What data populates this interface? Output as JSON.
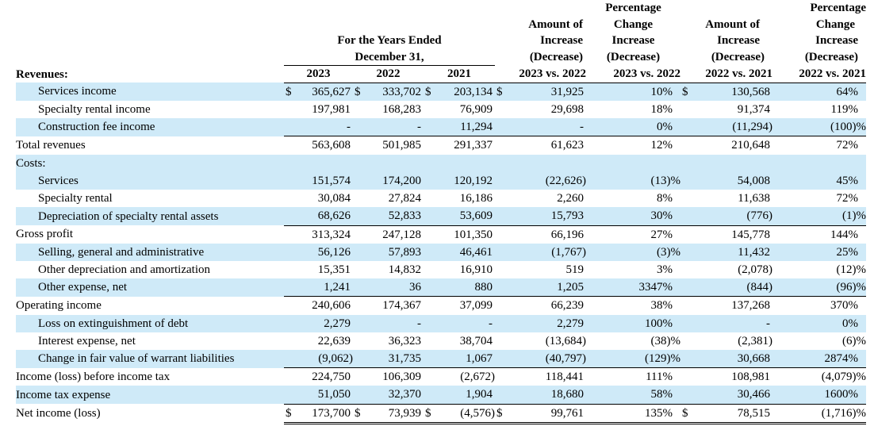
{
  "header": {
    "group_title_line1": "For the Years Ended",
    "group_title_line2": "December 31,",
    "years": [
      "2023",
      "2022",
      "2021"
    ],
    "change_1": [
      "Amount of",
      "Increase",
      "(Decrease)",
      "2023 vs. 2022"
    ],
    "pct_1": [
      "Percentage",
      "Change",
      "Increase",
      "(Decrease)",
      "2023 vs. 2022"
    ],
    "change_2": [
      "Amount of",
      "Increase",
      "(Decrease)",
      "2022 vs. 2021"
    ],
    "pct_2": [
      "Percentage",
      "Change",
      "Increase",
      "(Decrease)",
      "2022 vs. 2021"
    ],
    "revenues_label": "Revenues:"
  },
  "rows": [
    {
      "label": "Services income",
      "cur": [
        "$",
        "$",
        "$",
        "$",
        "$"
      ],
      "v2023": "365,627",
      "v2022": "333,702",
      "v2021": "203,134",
      "chg1": "31,925",
      "pct1": "10%",
      "chg2": "130,568",
      "pct2": "64%"
    },
    {
      "label": "Specialty rental income",
      "v2023": "197,981",
      "v2022": "168,283",
      "v2021": "76,909",
      "chg1": "29,698",
      "pct1": "18%",
      "chg2": "91,374",
      "pct2": "119%"
    },
    {
      "label": "Construction fee income",
      "v2023": "-",
      "v2022": "-",
      "v2021": "11,294",
      "chg1": "-",
      "pct1": "0%",
      "chg2": "(11,294)",
      "pct2": "(100)%"
    },
    {
      "label": "Total revenues",
      "v2023": "563,608",
      "v2022": "501,985",
      "v2021": "291,337",
      "chg1": "61,623",
      "pct1": "12%",
      "chg2": "210,648",
      "pct2": "72%"
    },
    {
      "label": "Costs:"
    },
    {
      "label": "Services",
      "v2023": "151,574",
      "v2022": "174,200",
      "v2021": "120,192",
      "chg1": "(22,626)",
      "pct1": "(13)%",
      "chg2": "54,008",
      "pct2": "45%"
    },
    {
      "label": "Specialty rental",
      "v2023": "30,084",
      "v2022": "27,824",
      "v2021": "16,186",
      "chg1": "2,260",
      "pct1": "8%",
      "chg2": "11,638",
      "pct2": "72%"
    },
    {
      "label": "Depreciation of specialty rental assets",
      "v2023": "68,626",
      "v2022": "52,833",
      "v2021": "53,609",
      "chg1": "15,793",
      "pct1": "30%",
      "chg2": "(776)",
      "pct2": "(1)%"
    },
    {
      "label": "Gross profit",
      "v2023": "313,324",
      "v2022": "247,128",
      "v2021": "101,350",
      "chg1": "66,196",
      "pct1": "27%",
      "chg2": "145,778",
      "pct2": "144%"
    },
    {
      "label": "Selling, general and administrative",
      "v2023": "56,126",
      "v2022": "57,893",
      "v2021": "46,461",
      "chg1": "(1,767)",
      "pct1": "(3)%",
      "chg2": "11,432",
      "pct2": "25%"
    },
    {
      "label": "Other depreciation and amortization",
      "v2023": "15,351",
      "v2022": "14,832",
      "v2021": "16,910",
      "chg1": "519",
      "pct1": "3%",
      "chg2": "(2,078)",
      "pct2": "(12)%"
    },
    {
      "label": "Other expense, net",
      "v2023": "1,241",
      "v2022": "36",
      "v2021": "880",
      "chg1": "1,205",
      "pct1": "3347%",
      "chg2": "(844)",
      "pct2": "(96)%"
    },
    {
      "label": "Operating income",
      "v2023": "240,606",
      "v2022": "174,367",
      "v2021": "37,099",
      "chg1": "66,239",
      "pct1": "38%",
      "chg2": "137,268",
      "pct2": "370%"
    },
    {
      "label": "Loss on extinguishment of debt",
      "v2023": "2,279",
      "v2022": "-",
      "v2021": "-",
      "chg1": "2,279",
      "pct1": "100%",
      "chg2": "-",
      "pct2": "0%"
    },
    {
      "label": "Interest expense, net",
      "v2023": "22,639",
      "v2022": "36,323",
      "v2021": "38,704",
      "chg1": "(13,684)",
      "pct1": "(38)%",
      "chg2": "(2,381)",
      "pct2": "(6)%"
    },
    {
      "label": "Change in fair value of warrant liabilities",
      "v2023": "(9,062)",
      "v2022": "31,735",
      "v2021": "1,067",
      "chg1": "(40,797)",
      "pct1": "(129)%",
      "chg2": "30,668",
      "pct2": "2874%"
    },
    {
      "label": "Income (loss) before income tax",
      "v2023": "224,750",
      "v2022": "106,309",
      "v2021": "(2,672)",
      "chg1": "118,441",
      "pct1": "111%",
      "chg2": "108,981",
      "pct2": "(4,079)%"
    },
    {
      "label": "Income tax expense",
      "v2023": "51,050",
      "v2022": "32,370",
      "v2021": "1,904",
      "chg1": "18,680",
      "pct1": "58%",
      "chg2": "30,466",
      "pct2": "1600%"
    },
    {
      "label": "Net income (loss)",
      "v2023": "173,700",
      "v2022": "73,939",
      "v2021": "(4,576)",
      "chg1": "99,761",
      "pct1": "135%",
      "chg2": "78,515",
      "pct2": "(1,716)%"
    }
  ],
  "currency_symbol": "$",
  "colors": {
    "shade": "#cfeaf8"
  }
}
